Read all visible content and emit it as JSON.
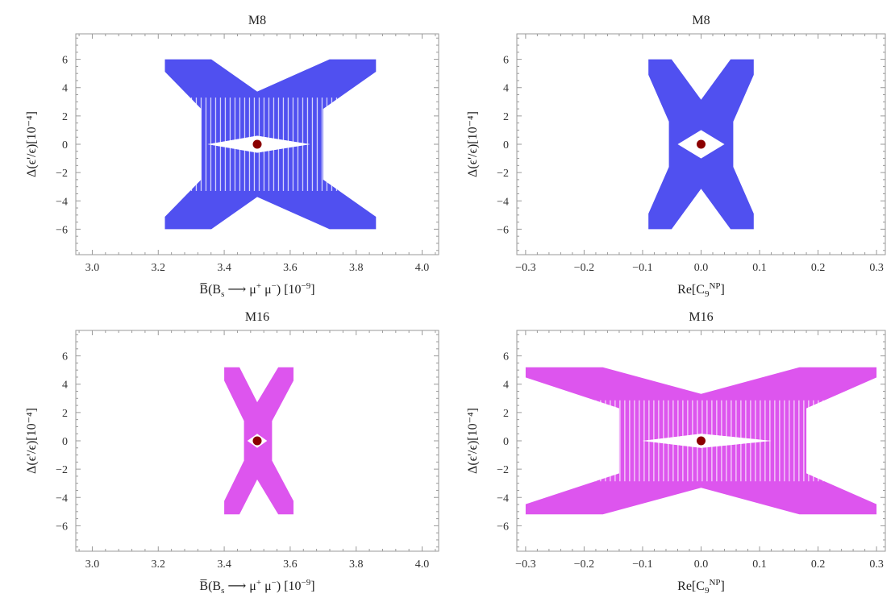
{
  "chart_data": [
    {
      "type": "scatter",
      "title": "M8",
      "xlabel": {
        "pre": "B̅(B",
        "sub": "s",
        "mid": " ⟶ μ",
        "sup1": "+",
        "mid2": " μ",
        "sup2": "−",
        "post": ") [10",
        "sup3": "−9",
        "end": "]"
      },
      "ylabel": "Δ(ϵ'/ϵ)[10⁻⁴]",
      "xlim": [
        2.95,
        4.05
      ],
      "ylim": [
        -7.8,
        7.8
      ],
      "xticks": [
        "3.0",
        "3.2",
        "3.4",
        "3.6",
        "3.8",
        "4.0"
      ],
      "yticks": [
        "-6",
        "-4",
        "-2",
        "0",
        "2",
        "4",
        "6"
      ],
      "region_color": "#5050f0",
      "point_color": "#8b0000",
      "center": [
        3.5,
        0
      ],
      "x_extent": [
        3.22,
        3.86
      ],
      "y_extent": [
        -6,
        6
      ],
      "inner_hole": {
        "x": [
          3.35,
          3.66
        ],
        "y": [
          -0.6,
          0.6
        ]
      },
      "waist": {
        "x": [
          3.33,
          3.7
        ],
        "y": 2.5
      },
      "striped": true
    },
    {
      "type": "scatter",
      "title": "M8",
      "xlabel": {
        "pre": "Re[C",
        "sub": "9",
        "sup": "NP",
        "post": "]"
      },
      "ylabel": "Δ(ϵ'/ϵ)[10⁻⁴]",
      "xlim": [
        -0.315,
        0.315
      ],
      "ylim": [
        -7.8,
        7.8
      ],
      "xticks": [
        "-0.3",
        "-0.2",
        "-0.1",
        "0.0",
        "0.1",
        "0.2",
        "0.3"
      ],
      "yticks": [
        "-6",
        "-4",
        "-2",
        "0",
        "2",
        "4",
        "6"
      ],
      "region_color": "#5050f0",
      "point_color": "#8b0000",
      "center": [
        0.0,
        0
      ],
      "x_extent": [
        -0.09,
        0.09
      ],
      "y_extent": [
        -6,
        6
      ],
      "inner_hole": {
        "x": [
          -0.04,
          0.04
        ],
        "y": [
          -1.0,
          1.0
        ]
      },
      "waist": {
        "x": [
          -0.055,
          0.055
        ],
        "y": 1.6
      },
      "striped": false
    },
    {
      "type": "scatter",
      "title": "M16",
      "xlabel": {
        "pre": "B̅(B",
        "sub": "s",
        "mid": " ⟶ μ",
        "sup1": "+",
        "mid2": " μ",
        "sup2": "−",
        "post": ") [10",
        "sup3": "−9",
        "end": "]"
      },
      "ylabel": "Δ(ϵ'/ϵ)[10⁻⁴]",
      "xlim": [
        2.95,
        4.05
      ],
      "ylim": [
        -7.8,
        7.8
      ],
      "xticks": [
        "3.0",
        "3.2",
        "3.4",
        "3.6",
        "3.8",
        "4.0"
      ],
      "yticks": [
        "-6",
        "-4",
        "-2",
        "0",
        "2",
        "4",
        "6"
      ],
      "region_color": "#dd55ee",
      "point_color": "#8b0000",
      "center": [
        3.5,
        0
      ],
      "x_extent": [
        3.4,
        3.61
      ],
      "y_extent": [
        -5.2,
        5.2
      ],
      "inner_hole": {
        "x": [
          3.47,
          3.53
        ],
        "y": [
          -0.5,
          0.5
        ]
      },
      "waist": {
        "x": [
          3.46,
          3.545
        ],
        "y": 1.4
      },
      "striped": false
    },
    {
      "type": "scatter",
      "title": "M16",
      "xlabel": {
        "pre": "Re[C",
        "sub": "9",
        "sup": "NP",
        "post": "]"
      },
      "ylabel": "Δ(ϵ'/ϵ)[10⁻⁴]",
      "xlim": [
        -0.315,
        0.315
      ],
      "ylim": [
        -7.8,
        7.8
      ],
      "xticks": [
        "-0.3",
        "-0.2",
        "-0.1",
        "0.0",
        "0.1",
        "0.2",
        "0.3"
      ],
      "yticks": [
        "-6",
        "-4",
        "-2",
        "0",
        "2",
        "4",
        "6"
      ],
      "region_color": "#dd55ee",
      "point_color": "#8b0000",
      "center": [
        0.0,
        0
      ],
      "x_extent": [
        -0.3,
        0.3
      ],
      "y_extent": [
        -5.2,
        5.2
      ],
      "inner_hole": {
        "x": [
          -0.1,
          0.12
        ],
        "y": [
          -0.5,
          0.5
        ]
      },
      "waist": {
        "x": [
          -0.14,
          0.18
        ],
        "y": 2.3
      },
      "striped": true
    }
  ]
}
